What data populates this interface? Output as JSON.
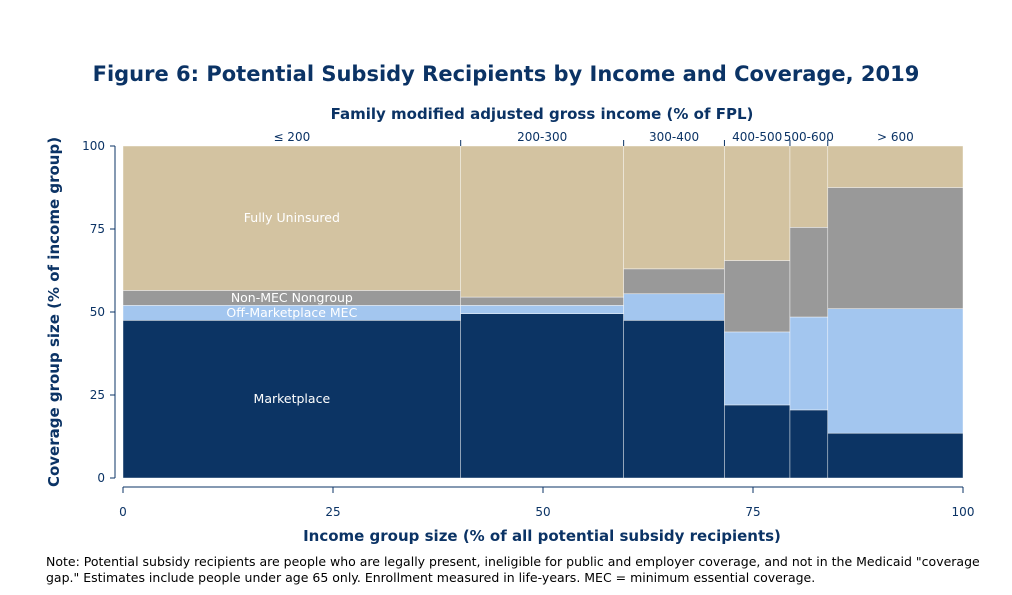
{
  "chart_data": {
    "type": "mosaic",
    "title": "Figure 6: Potential Subsidy Recipients by Income and Coverage, 2019",
    "top_axis_title": "Family modified adjusted gross income (% of FPL)",
    "xlabel": "Income group size (% of all potential subsidy recipients)",
    "ylabel": "Coverage group size (% of income group)",
    "xlim": [
      0,
      100
    ],
    "ylim": [
      0,
      100
    ],
    "x_ticks": [
      "0",
      "25",
      "50",
      "75",
      "100"
    ],
    "y_ticks": [
      "0",
      "25",
      "50",
      "75",
      "100"
    ],
    "coverage_groups": [
      {
        "name": "Marketplace",
        "color": "#0c3464"
      },
      {
        "name": "Off-Marketplace MEC",
        "color": "#a3c6ef"
      },
      {
        "name": "Non-MEC Nongroup",
        "color": "#999999"
      },
      {
        "name": "Fully Uninsured",
        "color": "#d3c3a1"
      }
    ],
    "income_groups": [
      {
        "label": "≤ 200",
        "size": 40.2,
        "values": [
          47.5,
          4.5,
          4.5,
          43.5
        ]
      },
      {
        "label": "200-300",
        "size": 19.4,
        "values": [
          49.5,
          2.5,
          2.5,
          45.5
        ]
      },
      {
        "label": "300-400",
        "size": 12.0,
        "values": [
          47.5,
          8.0,
          7.5,
          37.0
        ]
      },
      {
        "label": "400-500",
        "size": 7.8,
        "values": [
          22.0,
          22.0,
          21.5,
          34.5
        ]
      },
      {
        "label": "500-600",
        "size": 4.5,
        "values": [
          20.5,
          28.0,
          27.0,
          24.5
        ]
      },
      {
        "label": "> 600",
        "size": 16.1,
        "values": [
          13.5,
          37.5,
          36.5,
          12.5
        ]
      }
    ],
    "segment_labels": [
      "Fully Uninsured",
      "Non-MEC Nongroup",
      "Off-Marketplace MEC",
      "Marketplace"
    ]
  },
  "note": "Note: Potential subsidy recipients are people who are legally present, ineligible for public and employer coverage, and not in the Medicaid \"coverage gap.\" Estimates include people under age 65 only. Enrollment measured in life-years. MEC = minimum essential coverage."
}
